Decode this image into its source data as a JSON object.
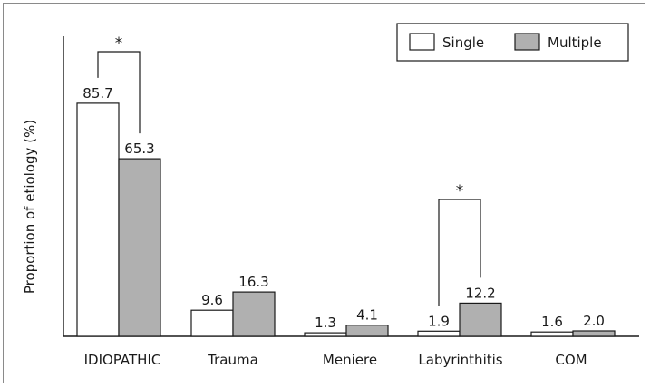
{
  "chart_data": {
    "type": "bar",
    "ylabel": "Proportion of etiology (%)",
    "xlabel": "",
    "ylim": [
      0,
      100
    ],
    "grid": false,
    "legend_position": "top-right",
    "categories": [
      "IDIOPATHIC",
      "Trauma",
      "Meniere",
      "Labyrinthitis",
      "COM"
    ],
    "series": [
      {
        "name": "Single",
        "values": [
          85.7,
          9.6,
          1.3,
          1.9,
          1.6
        ],
        "labels": [
          "85.7",
          "9.6",
          "1.3",
          "1.9",
          "1.6"
        ],
        "color": "#ffffff"
      },
      {
        "name": "Multiple",
        "values": [
          65.3,
          16.3,
          4.1,
          12.2,
          2.0
        ],
        "labels": [
          "65.3",
          "16.3",
          "4.1",
          "12.2",
          "2.0"
        ],
        "color": "#b0b0b0"
      }
    ],
    "significance": [
      {
        "category": "IDIOPATHIC",
        "marker": "*"
      },
      {
        "category": "Labyrinthitis",
        "marker": "*"
      }
    ]
  }
}
